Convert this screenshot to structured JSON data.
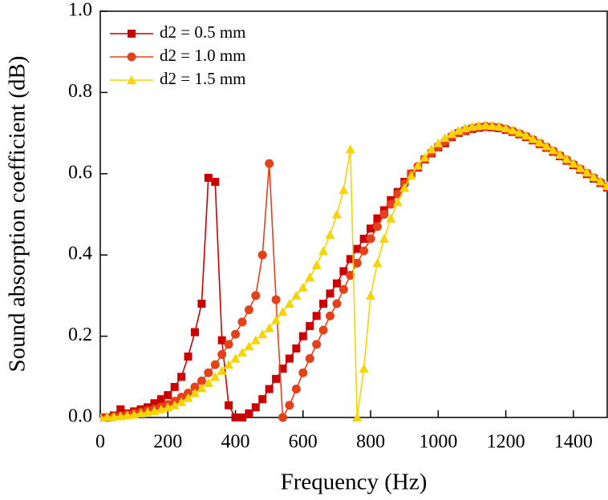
{
  "chart_data": {
    "type": "line",
    "x_label": "Frequency (Hz)",
    "y_label": "Sound absorption coefficient (dB)",
    "x": [
      0,
      20,
      40,
      60,
      80,
      100,
      120,
      140,
      160,
      180,
      200,
      220,
      240,
      260,
      280,
      300,
      320,
      340,
      360,
      380,
      400,
      420,
      440,
      460,
      480,
      500,
      520,
      540,
      560,
      580,
      600,
      620,
      640,
      660,
      680,
      700,
      720,
      740,
      760,
      780,
      800,
      820,
      840,
      860,
      880,
      900,
      920,
      940,
      960,
      980,
      1000,
      1020,
      1040,
      1060,
      1080,
      1100,
      1120,
      1140,
      1160,
      1180,
      1200,
      1220,
      1240,
      1260,
      1280,
      1300,
      1320,
      1340,
      1360,
      1380,
      1400,
      1420,
      1440,
      1460,
      1480,
      1500
    ],
    "series": [
      {
        "name": "d2 = 0.5 mm",
        "color": "#cc0000",
        "marker": "square",
        "values": [
          0,
          0,
          0.005,
          0.02,
          0.01,
          0.015,
          0.02,
          0.025,
          0.035,
          0.045,
          0.055,
          0.075,
          0.1,
          0.15,
          0.21,
          0.28,
          0.59,
          0.58,
          0.19,
          0.03,
          0,
          0,
          0.01,
          0.025,
          0.045,
          0.07,
          0.095,
          0.12,
          0.145,
          0.17,
          0.2,
          0.225,
          0.25,
          0.28,
          0.305,
          0.33,
          0.36,
          0.39,
          0.415,
          0.44,
          0.465,
          0.49,
          0.51,
          0.535,
          0.555,
          0.58,
          0.6,
          0.615,
          0.635,
          0.65,
          0.665,
          0.675,
          0.69,
          0.7,
          0.705,
          0.71,
          0.713,
          0.715,
          0.714,
          0.712,
          0.708,
          0.703,
          0.697,
          0.69,
          0.682,
          0.673,
          0.664,
          0.654,
          0.643,
          0.632,
          0.621,
          0.61,
          0.599,
          0.588,
          0.577,
          0.566
        ]
      },
      {
        "name": "d2 = 1.0 mm",
        "color": "#e4401a",
        "marker": "circle",
        "values": [
          0,
          0,
          0.002,
          0.004,
          0.007,
          0.01,
          0.013,
          0.017,
          0.021,
          0.026,
          0.032,
          0.04,
          0.05,
          0.06,
          0.075,
          0.09,
          0.11,
          0.13,
          0.155,
          0.18,
          0.205,
          0.235,
          0.265,
          0.3,
          0.4,
          0.625,
          0.29,
          0,
          0.03,
          0.07,
          0.11,
          0.145,
          0.18,
          0.215,
          0.25,
          0.28,
          0.315,
          0.35,
          0.38,
          0.41,
          0.44,
          0.47,
          0.5,
          0.525,
          0.55,
          0.575,
          0.6,
          0.618,
          0.636,
          0.652,
          0.667,
          0.679,
          0.692,
          0.701,
          0.707,
          0.712,
          0.715,
          0.717,
          0.716,
          0.714,
          0.71,
          0.705,
          0.699,
          0.692,
          0.684,
          0.675,
          0.666,
          0.656,
          0.645,
          0.634,
          0.623,
          0.612,
          0.601,
          0.59,
          0.579,
          0.568
        ]
      },
      {
        "name": "d2 = 1.5 mm",
        "color": "#f5d400",
        "marker": "triangle",
        "values": [
          0,
          0.001,
          0.002,
          0.003,
          0.005,
          0.007,
          0.01,
          0.013,
          0.016,
          0.02,
          0.025,
          0.03,
          0.038,
          0.048,
          0.06,
          0.072,
          0.085,
          0.1,
          0.115,
          0.13,
          0.145,
          0.16,
          0.175,
          0.19,
          0.205,
          0.22,
          0.24,
          0.26,
          0.28,
          0.3,
          0.32,
          0.345,
          0.375,
          0.41,
          0.45,
          0.5,
          0.56,
          0.66,
          0,
          0.12,
          0.3,
          0.38,
          0.44,
          0.49,
          0.53,
          0.565,
          0.595,
          0.62,
          0.64,
          0.66,
          0.675,
          0.688,
          0.698,
          0.706,
          0.712,
          0.716,
          0.718,
          0.719,
          0.718,
          0.716,
          0.712,
          0.707,
          0.701,
          0.694,
          0.686,
          0.677,
          0.668,
          0.658,
          0.647,
          0.636,
          0.625,
          0.614,
          0.603,
          0.592,
          0.581,
          0.57
        ]
      }
    ],
    "xlim": [
      0,
      1500
    ],
    "xticks": [
      0,
      200,
      400,
      600,
      800,
      1000,
      1200,
      1400
    ],
    "ylim": [
      0,
      1
    ],
    "yticks": [
      {
        "value": 0,
        "label": "0.0"
      },
      {
        "value": 0.2,
        "label": "0.2"
      },
      {
        "value": 0.4,
        "label": "0.4"
      },
      {
        "value": 0.6,
        "label": "0.6"
      },
      {
        "value": 0.8,
        "label": "0.8"
      },
      {
        "value": 1,
        "label": "1.0"
      }
    ],
    "legend": "upper left"
  }
}
